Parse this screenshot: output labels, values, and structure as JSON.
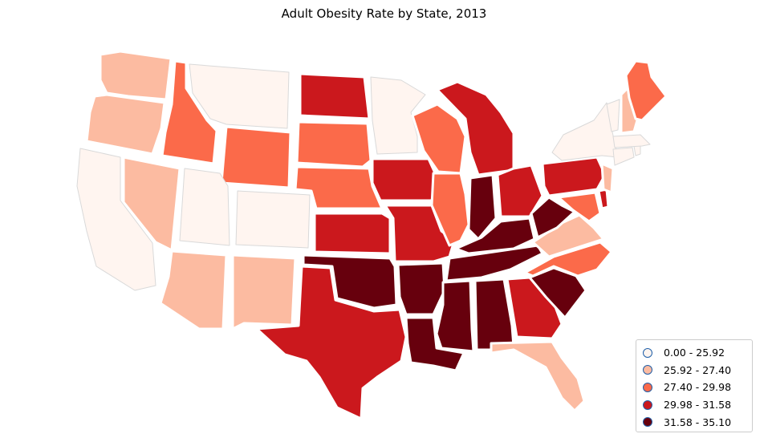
{
  "title": "Adult Obesity Rate by State, 2013",
  "chart_data": {
    "type": "choropleth",
    "title": "Adult Obesity Rate by State, 2013",
    "bins": [
      {
        "label": "0.00 - 25.92",
        "color": "#fff5f0"
      },
      {
        "label": "25.92 - 27.40",
        "color": "#fcbba1"
      },
      {
        "label": "27.40 - 29.98",
        "color": "#fb6a4a"
      },
      {
        "label": "29.98 - 31.58",
        "color": "#cb181d"
      },
      {
        "label": "31.58 - 35.10",
        "color": "#67000d"
      }
    ],
    "legend_position": "bottom-right",
    "states": [
      {
        "name": "Washington",
        "bin": 1
      },
      {
        "name": "Oregon",
        "bin": 1
      },
      {
        "name": "California",
        "bin": 0
      },
      {
        "name": "Nevada",
        "bin": 1
      },
      {
        "name": "Idaho",
        "bin": 2
      },
      {
        "name": "Montana",
        "bin": 0
      },
      {
        "name": "Wyoming",
        "bin": 2
      },
      {
        "name": "Utah",
        "bin": 0
      },
      {
        "name": "Colorado",
        "bin": 0
      },
      {
        "name": "Arizona",
        "bin": 1
      },
      {
        "name": "New Mexico",
        "bin": 1
      },
      {
        "name": "North Dakota",
        "bin": 3
      },
      {
        "name": "South Dakota",
        "bin": 2
      },
      {
        "name": "Nebraska",
        "bin": 2
      },
      {
        "name": "Kansas",
        "bin": 3
      },
      {
        "name": "Oklahoma",
        "bin": 4
      },
      {
        "name": "Texas",
        "bin": 3
      },
      {
        "name": "Minnesota",
        "bin": 0
      },
      {
        "name": "Iowa",
        "bin": 3
      },
      {
        "name": "Missouri",
        "bin": 3
      },
      {
        "name": "Arkansas",
        "bin": 4
      },
      {
        "name": "Louisiana",
        "bin": 4
      },
      {
        "name": "Wisconsin",
        "bin": 2
      },
      {
        "name": "Illinois",
        "bin": 2
      },
      {
        "name": "Michigan",
        "bin": 3
      },
      {
        "name": "Indiana",
        "bin": 4
      },
      {
        "name": "Ohio",
        "bin": 3
      },
      {
        "name": "Kentucky",
        "bin": 4
      },
      {
        "name": "Tennessee",
        "bin": 4
      },
      {
        "name": "Mississippi",
        "bin": 4
      },
      {
        "name": "Alabama",
        "bin": 4
      },
      {
        "name": "Georgia",
        "bin": 3
      },
      {
        "name": "Florida",
        "bin": 1
      },
      {
        "name": "South Carolina",
        "bin": 4
      },
      {
        "name": "North Carolina",
        "bin": 2
      },
      {
        "name": "Virginia",
        "bin": 1
      },
      {
        "name": "West Virginia",
        "bin": 4
      },
      {
        "name": "Pennsylvania",
        "bin": 3
      },
      {
        "name": "Maryland",
        "bin": 2
      },
      {
        "name": "Delaware",
        "bin": 3
      },
      {
        "name": "New Jersey",
        "bin": 1
      },
      {
        "name": "New York",
        "bin": 0
      },
      {
        "name": "Connecticut",
        "bin": 0
      },
      {
        "name": "Rhode Island",
        "bin": 0
      },
      {
        "name": "Massachusetts",
        "bin": 0
      },
      {
        "name": "Vermont",
        "bin": 0
      },
      {
        "name": "New Hampshire",
        "bin": 1
      },
      {
        "name": "Maine",
        "bin": 2
      }
    ]
  }
}
